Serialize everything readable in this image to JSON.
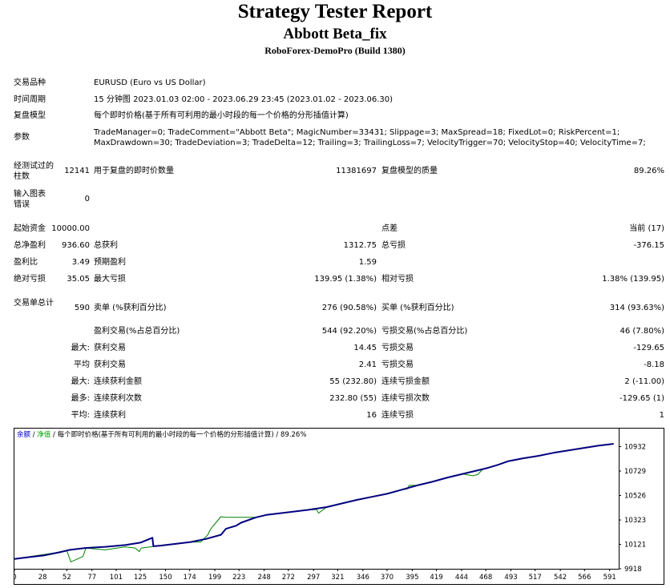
{
  "header": {
    "title": "Strategy Tester Report",
    "expert": "Abbott Beta_fix",
    "server": "RoboForex-DemoPro (Build 1380)"
  },
  "settings": {
    "symbol_label": "交易品种",
    "symbol": "EURUSD (Euro vs US Dollar)",
    "period_label": "时间周期",
    "period": "15 分钟图 2023.01.03 02:00 - 2023.06.29 23:45 (2023.01.02 - 2023.06.30)",
    "model_label": "复盘模型",
    "model": "每个即时价格(基于所有可利用的最小时段的每一个价格的分形插值计算)",
    "params_label": "参数",
    "params_line1": "TradeManager=0; TradeComment=\"Abbott Beta\"; MagicNumber=33431; Slippage=3; MaxSpread=18; FixedLot=0; RiskPercent=1;",
    "params_line2": "MaxDrawdown=30; TradeDeviation=3; TradeDelta=12; Trailing=3; TrailingLoss=7; VelocityTrigger=70; VelocityStop=40; VelocityTime=7;"
  },
  "quality": {
    "bars_label": "经测试过的柱数",
    "bars": "12141",
    "ticks_label": "用于复盘的即时价数量",
    "ticks": "11381697",
    "quality_label": "复盘模型的质量",
    "quality": "89.26%",
    "errors_label": "输入图表错误",
    "errors": "0"
  },
  "stats": {
    "deposit_label": "起始资金",
    "deposit": "10000.00",
    "spread_label": "点差",
    "spread": "当前 (17)",
    "net_label": "总净盈利",
    "net": "936.60",
    "gross_profit_label": "总获利",
    "gross_profit": "1312.75",
    "gross_loss_label": "总亏损",
    "gross_loss": "-376.15",
    "pf_label": "盈利比",
    "pf": "3.49",
    "payoff_label": "预期盈利",
    "payoff": "1.59",
    "abs_dd_label": "绝对亏损",
    "abs_dd": "35.05",
    "max_dd_label": "最大亏损",
    "max_dd": "139.95 (1.38%)",
    "rel_dd_label": "相对亏损",
    "rel_dd": "1.38% (139.95)",
    "trades_label": "交易单总计",
    "trades": "590",
    "short_label": "卖单 (%获利百分比)",
    "short": "276 (90.58%)",
    "long_label": "买单 (%获利百分比)",
    "long": "314 (93.63%)",
    "profit_trades_label": "盈利交易(%占总百分比)",
    "profit_trades": "544 (92.20%)",
    "loss_trades_label": "亏损交易(%占总百分比)",
    "loss_trades": "46 (7.80%)",
    "largest_label": "最大:",
    "largest_profit_label": "获利交易",
    "largest_profit": "14.45",
    "largest_loss_label": "亏损交易",
    "largest_loss": "-129.65",
    "average_label": "平均",
    "average_profit_label": "获利交易",
    "average_profit": "2.41",
    "average_loss_label": "亏损交易",
    "average_loss": "-8.18",
    "max_label": "最大:",
    "max_cons_wins_label": "连续获利金额",
    "max_cons_wins": "55 (232.80)",
    "max_cons_losses_label": "连续亏损金额",
    "max_cons_losses": "2 (-11.00)",
    "maximal_label": "最多:",
    "maximal_cons_profit_label": "连续获利次数",
    "maximal_cons_profit": "232.80 (55)",
    "maximal_cons_loss_label": "连续亏损次数",
    "maximal_cons_loss": "-129.65 (1)",
    "avg_cons_label": "平均:",
    "avg_cons_wins_label": "连续获利",
    "avg_cons_wins": "16",
    "avg_cons_losses_label": "连续亏损",
    "avg_cons_losses": "1"
  },
  "chart_data": {
    "type": "line",
    "legend": {
      "balance": "余额",
      "sep1": " / ",
      "equity": "净值",
      "sep2": " / ",
      "model": "每个即时价格(基于所有可利用的最小时段的每一个价格的分形插值计算) / 89.26%"
    },
    "colors": {
      "balance": "#00007f",
      "equity": "#008000",
      "legend_balance": "#0000c0",
      "legend_equity": "#00a000"
    },
    "x_ticks": [
      0,
      28,
      52,
      77,
      101,
      125,
      150,
      174,
      199,
      223,
      248,
      272,
      297,
      321,
      346,
      370,
      395,
      419,
      444,
      468,
      493,
      517,
      542,
      566,
      591
    ],
    "y_ticks": [
      9918,
      10121,
      10323,
      10526,
      10729,
      10932
    ],
    "xlim": [
      0,
      600
    ],
    "ylim": [
      9918,
      10995
    ],
    "series": [
      {
        "key": "balance",
        "x": [
          0,
          15,
          30,
          45,
          55,
          70,
          90,
          110,
          125,
          137,
          138,
          145,
          160,
          175,
          190,
          205,
          210,
          220,
          225,
          235,
          240,
          250,
          270,
          290,
          310,
          325,
          340,
          355,
          370,
          385,
          400,
          415,
          430,
          445,
          460,
          470,
          480,
          490,
          505,
          520,
          535,
          550,
          565,
          580,
          595
        ],
        "values": [
          10000,
          10015,
          10030,
          10055,
          10075,
          10090,
          10100,
          10115,
          10135,
          10175,
          10105,
          10110,
          10125,
          10140,
          10165,
          10200,
          10250,
          10275,
          10300,
          10330,
          10345,
          10365,
          10385,
          10405,
          10430,
          10460,
          10490,
          10515,
          10540,
          10575,
          10610,
          10640,
          10675,
          10705,
          10735,
          10755,
          10780,
          10810,
          10835,
          10855,
          10880,
          10900,
          10920,
          10940,
          10955
        ]
      },
      {
        "key": "equity",
        "x": [
          0,
          40,
          52,
          56,
          68,
          71,
          90,
          110,
          120,
          124,
          126,
          145,
          160,
          175,
          185,
          192,
          195,
          200,
          205,
          210,
          240,
          250,
          270,
          290,
          300,
          302,
          310,
          325,
          340,
          370,
          385,
          390,
          392,
          400,
          430,
          445,
          455,
          460,
          465,
          470,
          480,
          490,
          505,
          520,
          535,
          550,
          565,
          580,
          595
        ],
        "values": [
          10000,
          10050,
          10070,
          9975,
          10020,
          10090,
          10075,
          10100,
          10090,
          10060,
          10090,
          10110,
          10125,
          10140,
          10140,
          10200,
          10250,
          10300,
          10350,
          10345,
          10345,
          10365,
          10385,
          10405,
          10410,
          10380,
          10430,
          10460,
          10490,
          10540,
          10575,
          10580,
          10610,
          10610,
          10675,
          10705,
          10690,
          10700,
          10745,
          10755,
          10780,
          10810,
          10835,
          10855,
          10880,
          10900,
          10920,
          10940,
          10955
        ]
      }
    ]
  }
}
